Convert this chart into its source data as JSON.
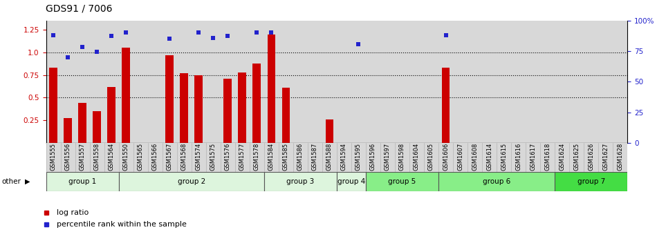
{
  "title": "GDS91 / 7006",
  "samples": [
    "GSM1555",
    "GSM1556",
    "GSM1557",
    "GSM1558",
    "GSM1564",
    "GSM1550",
    "GSM1565",
    "GSM1566",
    "GSM1567",
    "GSM1568",
    "GSM1574",
    "GSM1575",
    "GSM1576",
    "GSM1577",
    "GSM1578",
    "GSM1584",
    "GSM1585",
    "GSM1586",
    "GSM1587",
    "GSM1588",
    "GSM1594",
    "GSM1595",
    "GSM1596",
    "GSM1597",
    "GSM1598",
    "GSM1604",
    "GSM1605",
    "GSM1606",
    "GSM1607",
    "GSM1608",
    "GSM1614",
    "GSM1615",
    "GSM1616",
    "GSM1617",
    "GSM1618",
    "GSM1624",
    "GSM1625",
    "GSM1626",
    "GSM1627",
    "GSM1628"
  ],
  "log_ratio": [
    0.83,
    0.27,
    0.44,
    0.35,
    0.62,
    1.05,
    0.0,
    0.0,
    0.97,
    0.77,
    0.75,
    0.0,
    0.71,
    0.78,
    0.88,
    1.2,
    0.61,
    0.0,
    0.0,
    0.26,
    0.0,
    0.0,
    0.0,
    0.0,
    0.0,
    0.0,
    0.0,
    0.83,
    0.0,
    0.0,
    0.0,
    0.0,
    0.0,
    0.0,
    0.0,
    0.0,
    0.0,
    0.0,
    0.0,
    0.0
  ],
  "percentile": [
    1.19,
    0.95,
    1.06,
    1.01,
    1.18,
    1.22,
    null,
    null,
    1.15,
    null,
    1.22,
    1.16,
    1.18,
    null,
    1.22,
    1.22,
    null,
    null,
    null,
    null,
    null,
    1.09,
    null,
    null,
    null,
    null,
    null,
    1.19,
    null,
    null,
    null,
    null,
    null,
    null,
    null,
    null,
    null,
    null,
    null,
    null
  ],
  "groups": [
    {
      "name": "group 1",
      "start": 0,
      "end": 5,
      "color": "#ddf5dd"
    },
    {
      "name": "group 2",
      "start": 5,
      "end": 15,
      "color": "#ddf5dd"
    },
    {
      "name": "group 3",
      "start": 15,
      "end": 20,
      "color": "#ddf5dd"
    },
    {
      "name": "group 4",
      "start": 20,
      "end": 22,
      "color": "#ddf5dd"
    },
    {
      "name": "group 5",
      "start": 22,
      "end": 27,
      "color": "#88ee88"
    },
    {
      "name": "group 6",
      "start": 27,
      "end": 35,
      "color": "#88ee88"
    },
    {
      "name": "group 7",
      "start": 35,
      "end": 40,
      "color": "#44dd44"
    }
  ],
  "ylim_left": [
    0.0,
    1.35
  ],
  "yticks_left": [
    0.25,
    0.5,
    0.75,
    1.0,
    1.25
  ],
  "yticks_right": [
    0,
    25,
    50,
    75,
    100
  ],
  "ytick_labels_right": [
    "0",
    "25",
    "50",
    "75",
    "100%"
  ],
  "dotted_lines": [
    0.5,
    0.75,
    1.0
  ],
  "bar_color": "#cc0000",
  "dot_color": "#2222cc",
  "bar_width": 0.55,
  "background_color": "#d8d8d8",
  "legend_log_ratio": "log ratio",
  "legend_percentile": "percentile rank within the sample"
}
